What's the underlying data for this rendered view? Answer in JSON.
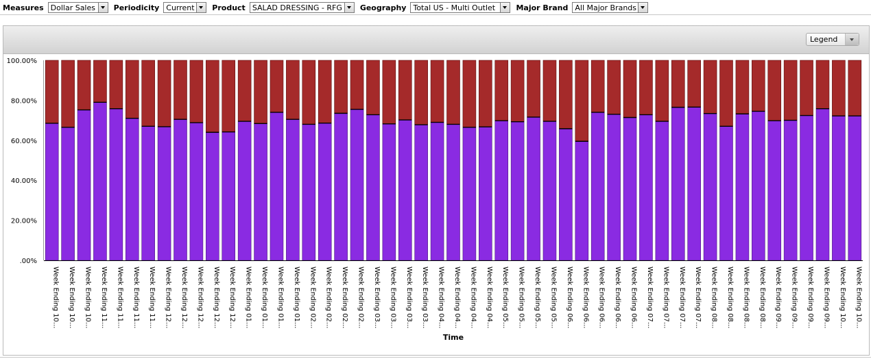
{
  "toolbar": {
    "measures_label": "Measures",
    "measures_value": "Dollar Sales",
    "periodicity_label": "Periodicity",
    "periodicity_value": "Current",
    "product_label": "Product",
    "product_value": "SALAD DRESSING - RFG",
    "geography_label": "Geography",
    "geography_value": "Total US - Multi Outlet",
    "brand_label": "Major Brand",
    "brand_value": "All Major Brands"
  },
  "legend_button": {
    "label": "Legend"
  },
  "colors": {
    "bottom_series": "#8a2be2",
    "top_series": "#a52a2a"
  },
  "chart_data": {
    "type": "bar",
    "stacked": "percent",
    "xlabel": "Time",
    "ylabel": "",
    "ylim": [
      0,
      100
    ],
    "yticks": [
      "100.00%",
      "80.00%",
      "60.00%",
      "40.00%",
      "20.00%",
      ".00%"
    ],
    "categories": [
      "Week Ending 10...",
      "Week Ending 10...",
      "Week Ending 10...",
      "Week Ending 11...",
      "Week Ending 11...",
      "Week Ending 11...",
      "Week Ending 11...",
      "Week Ending 12...",
      "Week Ending 12...",
      "Week Ending 12...",
      "Week Ending 12...",
      "Week Ending 12...",
      "Week Ending 01...",
      "Week Ending 01...",
      "Week Ending 01...",
      "Week Ending 01...",
      "Week Ending 02...",
      "Week Ending 02...",
      "Week Ending 02...",
      "Week Ending 02...",
      "Week Ending 03...",
      "Week Ending 03...",
      "Week Ending 03...",
      "Week Ending 03...",
      "Week Ending 04...",
      "Week Ending 04...",
      "Week Ending 04...",
      "Week Ending 04...",
      "Week Ending 05...",
      "Week Ending 05...",
      "Week Ending 05...",
      "Week Ending 05...",
      "Week Ending 06...",
      "Week Ending 06...",
      "Week Ending 06...",
      "Week Ending 06...",
      "Week Ending 06...",
      "Week Ending 07...",
      "Week Ending 07...",
      "Week Ending 07...",
      "Week Ending 07...",
      "Week Ending 08...",
      "Week Ending 08...",
      "Week Ending 08...",
      "Week Ending 08...",
      "Week Ending 09...",
      "Week Ending 09...",
      "Week Ending 09...",
      "Week Ending 09...",
      "Week Ending 10...",
      "Week Ending 10..."
    ],
    "series": [
      {
        "values": [
          68.5,
          66.5,
          75.2,
          79.0,
          75.8,
          71.0,
          67.0,
          66.8,
          70.5,
          68.8,
          64.0,
          64.2,
          69.5,
          68.4,
          74.0,
          70.5,
          68.0,
          68.6,
          73.5,
          75.5,
          72.8,
          68.2,
          70.2,
          67.8,
          69.0,
          68.0,
          66.5,
          66.7,
          69.8,
          69.3,
          71.6,
          69.5,
          65.8,
          59.5,
          74.0,
          73.0,
          71.4,
          72.8,
          69.5,
          76.5,
          76.6,
          73.4,
          67.0,
          73.2,
          74.5,
          69.8,
          70.0,
          72.4,
          75.8,
          72.2,
          72.2
        ]
      },
      {
        "values": [
          31.5,
          33.5,
          24.8,
          21.0,
          24.2,
          29.0,
          33.0,
          33.2,
          29.5,
          31.2,
          36.0,
          35.8,
          30.5,
          31.6,
          26.0,
          29.5,
          32.0,
          31.4,
          26.5,
          24.5,
          27.2,
          31.8,
          29.8,
          32.2,
          31.0,
          32.0,
          33.5,
          33.3,
          30.2,
          30.7,
          28.4,
          30.5,
          34.2,
          40.5,
          26.0,
          27.0,
          28.6,
          27.2,
          30.5,
          23.5,
          23.4,
          26.6,
          33.0,
          26.8,
          25.5,
          30.2,
          30.0,
          27.6,
          24.2,
          27.8,
          27.8
        ]
      }
    ],
    "legend": "collapsed-dropdown-top-right",
    "grid": false
  }
}
